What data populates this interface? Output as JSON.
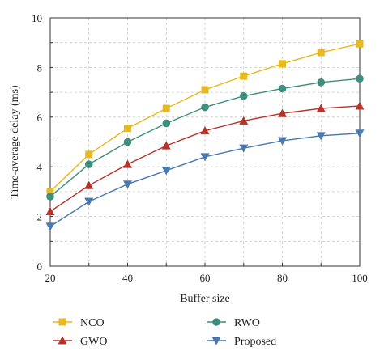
{
  "chart_data": {
    "type": "line",
    "title": "",
    "xlabel": "Buffer size",
    "ylabel": "Time-average delay (ms)",
    "xlim": [
      20,
      100
    ],
    "ylim": [
      0,
      10
    ],
    "x_ticks": [
      20,
      40,
      60,
      80,
      100
    ],
    "y_ticks": [
      0,
      2,
      4,
      6,
      8,
      10
    ],
    "grid": "dashed, both axes",
    "legend_position": "bottom, two columns",
    "x": [
      20,
      30,
      40,
      50,
      60,
      70,
      80,
      90,
      100
    ],
    "series": [
      {
        "name": "NCO",
        "color": "#E8B820",
        "marker": "square",
        "values": [
          3.0,
          4.5,
          5.55,
          6.35,
          7.1,
          7.65,
          8.15,
          8.6,
          8.95
        ]
      },
      {
        "name": "RWO",
        "color": "#3E8E7E",
        "marker": "circle",
        "values": [
          2.8,
          4.1,
          5.0,
          5.75,
          6.4,
          6.85,
          7.15,
          7.4,
          7.55
        ]
      },
      {
        "name": "GWO",
        "color": "#B8322A",
        "marker": "triangle-up",
        "values": [
          2.2,
          3.25,
          4.1,
          4.85,
          5.45,
          5.85,
          6.15,
          6.35,
          6.45
        ]
      },
      {
        "name": "Proposed",
        "color": "#4A78B0",
        "marker": "triangle-down",
        "values": [
          1.6,
          2.6,
          3.3,
          3.85,
          4.4,
          4.75,
          5.05,
          5.25,
          5.35
        ]
      }
    ],
    "legend_order": [
      "NCO",
      "RWO",
      "GWO",
      "Proposed"
    ]
  }
}
